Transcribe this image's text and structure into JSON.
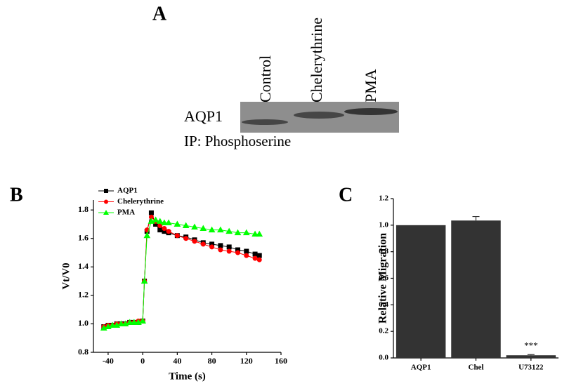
{
  "figure": {
    "labels": [
      "A",
      "B",
      "C"
    ]
  },
  "blot": {
    "lanes": [
      "Control",
      "Chelerythrine",
      "PMA"
    ],
    "protein": "AQP1",
    "ip": "IP: Phosphoserine"
  },
  "chart_data": [
    {
      "type": "scatter-line",
      "x_label": "Time (s)",
      "y_label": "Vt/V0",
      "x": [
        -45,
        -40,
        -35,
        -30,
        -25,
        -20,
        -15,
        -10,
        -5,
        0,
        2,
        5,
        10,
        15,
        20,
        25,
        30,
        40,
        50,
        60,
        70,
        80,
        90,
        100,
        110,
        120,
        130,
        135
      ],
      "series": [
        {
          "name": "AQP1",
          "color": "#000000",
          "marker": "square",
          "values": [
            0.98,
            0.99,
            0.99,
            1.0,
            1.0,
            1.0,
            1.01,
            1.01,
            1.01,
            1.02,
            1.3,
            1.65,
            1.78,
            1.7,
            1.66,
            1.65,
            1.64,
            1.62,
            1.61,
            1.59,
            1.57,
            1.56,
            1.55,
            1.54,
            1.52,
            1.51,
            1.49,
            1.48
          ]
        },
        {
          "name": "Chelerythrine",
          "color": "#ff0000",
          "marker": "circle",
          "values": [
            0.98,
            0.99,
            0.99,
            1.0,
            1.0,
            1.0,
            1.01,
            1.01,
            1.02,
            1.02,
            1.3,
            1.66,
            1.75,
            1.72,
            1.69,
            1.67,
            1.65,
            1.62,
            1.6,
            1.58,
            1.56,
            1.54,
            1.52,
            1.51,
            1.5,
            1.48,
            1.46,
            1.45
          ]
        },
        {
          "name": "PMA",
          "color": "#00ff00",
          "marker": "triangle",
          "values": [
            0.97,
            0.98,
            0.99,
            0.99,
            1.0,
            1.0,
            1.01,
            1.01,
            1.01,
            1.02,
            1.3,
            1.62,
            1.72,
            1.73,
            1.72,
            1.71,
            1.71,
            1.7,
            1.69,
            1.68,
            1.67,
            1.66,
            1.66,
            1.65,
            1.64,
            1.64,
            1.63,
            1.63
          ]
        }
      ],
      "xlim": [
        -57,
        160
      ],
      "xticks": [
        -40,
        0,
        40,
        80,
        120,
        160
      ],
      "ylim": [
        0.8,
        1.87
      ],
      "yticks": [
        0.8,
        {
          "value": 1.0,
          "label": "1.0"
        },
        1.2,
        1.4,
        1.6,
        1.8
      ],
      "legend": "top-left"
    },
    {
      "type": "bar",
      "y_label": "Relative Migration",
      "categories": [
        "AQP1",
        "Chel",
        "U73122"
      ],
      "values": [
        1.0,
        1.035,
        0.02
      ],
      "errors": [
        0,
        0.03,
        0.005
      ],
      "annotations": [
        null,
        null,
        "***"
      ],
      "color": "#333333",
      "ylim": [
        0,
        1.2
      ],
      "yticks": [
        {
          "value": 0,
          "label": "0.0"
        },
        0.2,
        0.4,
        0.6,
        0.8,
        {
          "value": 1.0,
          "label": "1.0"
        },
        1.2
      ]
    }
  ]
}
